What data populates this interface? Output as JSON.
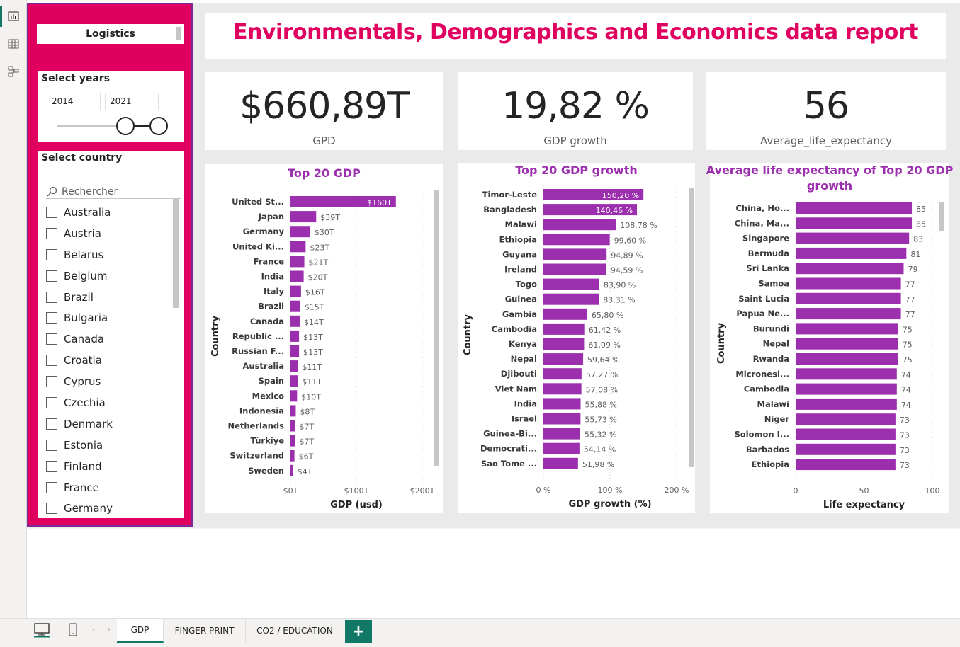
{
  "app": {
    "left_nav": [
      {
        "name": "report-view-icon"
      },
      {
        "name": "data-view-icon"
      },
      {
        "name": "model-view-icon"
      }
    ]
  },
  "colors": {
    "accent": "#e0005f",
    "bar": "#9b2fae",
    "panel_border": "#7b2a9b",
    "tab_accent": "#117865"
  },
  "slicers": {
    "logistics_label": "Logistics",
    "years": {
      "title": "Select years",
      "from": "2014",
      "to": "2021",
      "range_start_fraction": 1.0,
      "range_end_fraction": 1.0
    },
    "country": {
      "title": "Select country",
      "search_placeholder": "Rechercher",
      "items": [
        "Australia",
        "Austria",
        "Belarus",
        "Belgium",
        "Brazil",
        "Bulgaria",
        "Canada",
        "Croatia",
        "Cyprus",
        "Czechia",
        "Denmark",
        "Estonia",
        "Finland",
        "France",
        "Germany"
      ]
    }
  },
  "header": {
    "title": "Environmentals, Demographics and Economics data report"
  },
  "kpis": [
    {
      "value": "$660,89T",
      "label": "GPD"
    },
    {
      "value": "19,82 %",
      "label": "GDP growth"
    },
    {
      "value": "56",
      "label": "Average_life_expectancy"
    }
  ],
  "chart_data": [
    {
      "type": "bar",
      "orientation": "horizontal",
      "title": "Top 20 GDP",
      "xlabel": "GDP (usd)",
      "ylabel": "Country",
      "xlim": [
        0,
        200
      ],
      "xticks": [
        "$0T",
        "$100T",
        "$200T"
      ],
      "categories": [
        "United St...",
        "Japan",
        "Germany",
        "United Ki...",
        "France",
        "India",
        "Italy",
        "Brazil",
        "Canada",
        "Republic ...",
        "Russian F...",
        "Australia",
        "Spain",
        "Mexico",
        "Indonesia",
        "Netherlands",
        "Türkiye",
        "Switzerland",
        "Sweden"
      ],
      "values": [
        160,
        39,
        30,
        23,
        21,
        20,
        16,
        15,
        14,
        13,
        13,
        11,
        11,
        10,
        8,
        7,
        7,
        6,
        4
      ],
      "labels": [
        "$160T",
        "$39T",
        "$30T",
        "$23T",
        "$21T",
        "$20T",
        "$16T",
        "$15T",
        "$14T",
        "$13T",
        "$13T",
        "$11T",
        "$11T",
        "$10T",
        "$8T",
        "$7T",
        "$7T",
        "$6T",
        "$4T"
      ],
      "inside_label_count": 1,
      "grid": true,
      "color": "#9b2fae"
    },
    {
      "type": "bar",
      "orientation": "horizontal",
      "title": "Top 20 GDP growth",
      "xlabel": "GDP growth (%)",
      "ylabel": "Country",
      "xlim": [
        0,
        200
      ],
      "xticks": [
        "0 %",
        "100 %",
        "200 %"
      ],
      "categories": [
        "Timor-Leste",
        "Bangladesh",
        "Malawi",
        "Ethiopia",
        "Guyana",
        "Ireland",
        "Togo",
        "Guinea",
        "Gambia",
        "Cambodia",
        "Kenya",
        "Nepal",
        "Djibouti",
        "Viet Nam",
        "India",
        "Israel",
        "Guinea-Bi...",
        "Democrati...",
        "Sao Tome ..."
      ],
      "values": [
        150.2,
        140.46,
        108.78,
        99.6,
        94.89,
        94.59,
        83.9,
        83.31,
        65.8,
        61.42,
        61.09,
        59.64,
        57.27,
        57.08,
        55.88,
        55.73,
        55.32,
        54.14,
        51.98
      ],
      "labels": [
        "150,20 %",
        "140,46 %",
        "108,78 %",
        "99,60 %",
        "94,89 %",
        "94,59 %",
        "83,90 %",
        "83,31 %",
        "65,80 %",
        "61,42 %",
        "61,09 %",
        "59,64 %",
        "57,27 %",
        "57,08 %",
        "55,88 %",
        "55,73 %",
        "55,32 %",
        "54,14 %",
        "51,98 %"
      ],
      "inside_label_count": 2,
      "grid": true,
      "color": "#9b2fae"
    },
    {
      "type": "bar",
      "orientation": "horizontal",
      "title": "Average life expectancy of Top 20 GDP growth",
      "title_lines": [
        "Average life expectancy of Top 20 GDP",
        "growth"
      ],
      "xlabel": "Life expectancy",
      "ylabel": "Country",
      "xlim": [
        0,
        100
      ],
      "xticks": [
        "0",
        "50",
        "100"
      ],
      "categories": [
        "China, Ho...",
        "China, Ma...",
        "Singapore",
        "Bermuda",
        "Sri Lanka",
        "Samoa",
        "Saint Lucia",
        "Papua Ne...",
        "Burundi",
        "Nepal",
        "Rwanda",
        "Micronesi...",
        "Cambodia",
        "Malawi",
        "Niger",
        "Solomon I...",
        "Barbados",
        "Ethiopia"
      ],
      "values": [
        85,
        85,
        83,
        81,
        79,
        77,
        77,
        77,
        75,
        75,
        75,
        74,
        74,
        74,
        73,
        73,
        73,
        73
      ],
      "labels": [
        "85",
        "85",
        "83",
        "81",
        "79",
        "77",
        "77",
        "77",
        "75",
        "75",
        "75",
        "74",
        "74",
        "74",
        "73",
        "73",
        "73",
        "73"
      ],
      "inside_label_count": 0,
      "grid": true,
      "color": "#9b2fae"
    }
  ],
  "tabs": [
    {
      "label": "GDP",
      "active": true
    },
    {
      "label": "FINGER PRINT",
      "active": false
    },
    {
      "label": "CO2 / EDUCATION",
      "active": false
    }
  ],
  "add_tab_label": "+"
}
